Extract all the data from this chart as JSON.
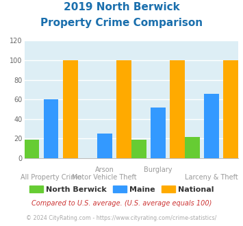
{
  "title_line1": "2019 North Berwick",
  "title_line2": "Property Crime Comparison",
  "title_color": "#1a6fad",
  "north_berwick": [
    19,
    0,
    19,
    22
  ],
  "maine": [
    60,
    25,
    52,
    66
  ],
  "national": [
    100,
    100,
    100,
    100
  ],
  "nb_color": "#66cc33",
  "maine_color": "#3399ff",
  "national_color": "#ffaa00",
  "bg_color": "#ddeef5",
  "ylim": [
    0,
    120
  ],
  "yticks": [
    0,
    20,
    40,
    60,
    80,
    100,
    120
  ],
  "grid_color": "#ffffff",
  "footnote1": "Compared to U.S. average. (U.S. average equals 100)",
  "footnote2": "© 2024 CityRating.com - https://www.cityrating.com/crime-statistics/",
  "footnote1_color": "#cc3333",
  "footnote2_color": "#aaaaaa",
  "legend_labels": [
    "North Berwick",
    "Maine",
    "National"
  ],
  "top_row_labels": [
    [
      "Arson",
      1.5
    ],
    [
      "Burglary",
      4.5
    ]
  ],
  "bot_row_labels": [
    [
      "All Property Crime",
      0.5
    ],
    [
      "Motor Vehicle Theft",
      2.5
    ],
    [
      "Larceny & Theft",
      5.5
    ]
  ],
  "bar_width": 0.28
}
